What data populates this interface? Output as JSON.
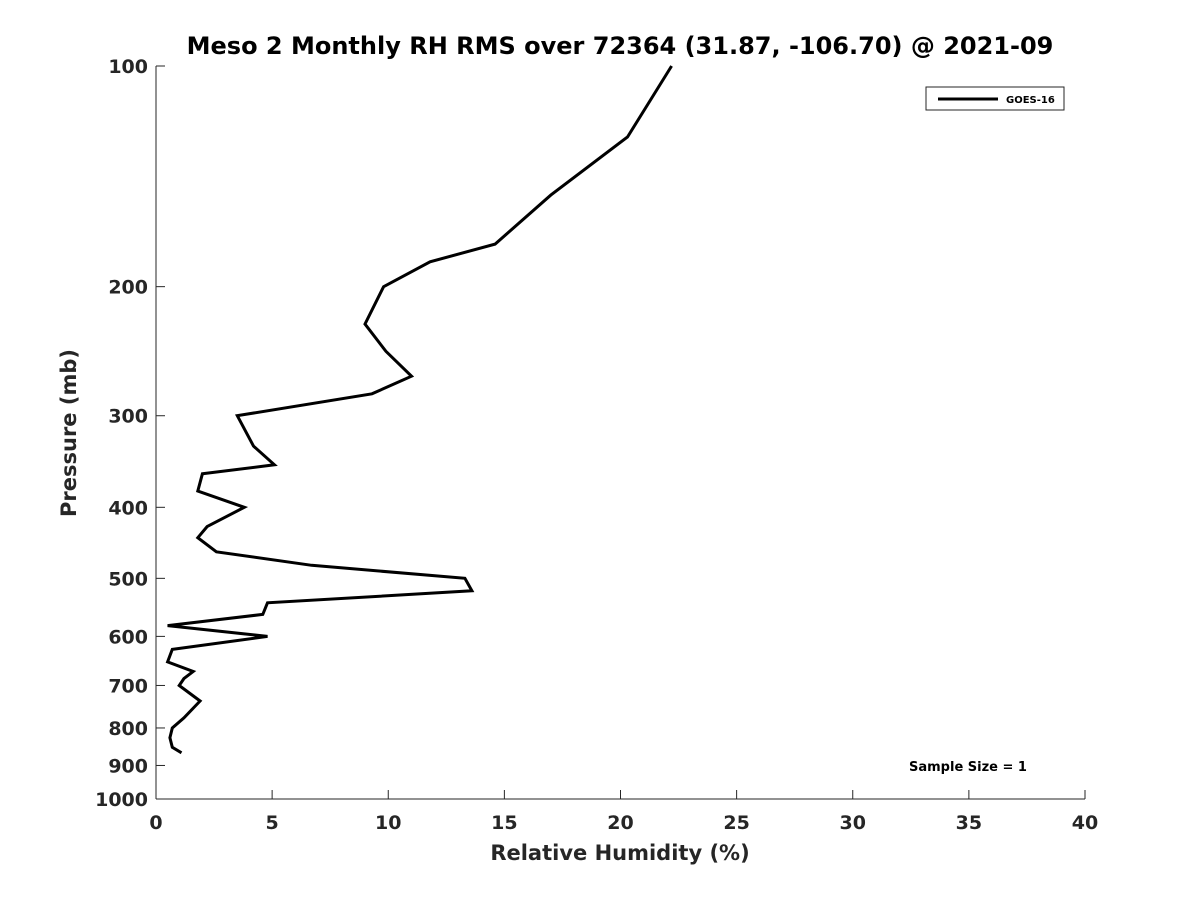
{
  "chart_data": {
    "type": "line",
    "title": "Meso 2 Monthly RH RMS over 72364 (31.87, -106.70) @ 2021-09",
    "xlabel": "Relative Humidity (%)",
    "ylabel": "Pressure (mb)",
    "xlim": [
      0,
      40
    ],
    "ylim": [
      100,
      1000
    ],
    "y_scale": "log",
    "y_reversed": true,
    "x_ticks": [
      "0",
      "5",
      "10",
      "15",
      "20",
      "25",
      "30",
      "35",
      "40"
    ],
    "y_ticks": [
      "100",
      "200",
      "300",
      "400",
      "500",
      "600",
      "700",
      "800",
      "900",
      "1000"
    ],
    "grid": false,
    "legend_position": "top-right",
    "annotation": "Sample Size = 1",
    "series": [
      {
        "name": "GOES-16",
        "color": "#000000",
        "points": [
          [
            22.2,
            100
          ],
          [
            20.3,
            125
          ],
          [
            17.0,
            150
          ],
          [
            14.6,
            175
          ],
          [
            11.8,
            185
          ],
          [
            9.8,
            200
          ],
          [
            9.0,
            225
          ],
          [
            9.9,
            245
          ],
          [
            11.0,
            265
          ],
          [
            9.3,
            280
          ],
          [
            3.5,
            300
          ],
          [
            4.2,
            330
          ],
          [
            5.1,
            350
          ],
          [
            2.0,
            360
          ],
          [
            1.8,
            380
          ],
          [
            3.8,
            400
          ],
          [
            2.2,
            425
          ],
          [
            1.8,
            440
          ],
          [
            2.6,
            460
          ],
          [
            6.7,
            480
          ],
          [
            13.3,
            500
          ],
          [
            13.6,
            520
          ],
          [
            4.8,
            540
          ],
          [
            4.6,
            560
          ],
          [
            0.5,
            580
          ],
          [
            4.8,
            600
          ],
          [
            0.7,
            625
          ],
          [
            0.5,
            650
          ],
          [
            1.6,
            670
          ],
          [
            1.2,
            685
          ],
          [
            1.0,
            700
          ],
          [
            1.9,
            735
          ],
          [
            1.2,
            775
          ],
          [
            0.7,
            800
          ],
          [
            0.6,
            825
          ],
          [
            0.7,
            850
          ],
          [
            1.1,
            865
          ]
        ]
      }
    ]
  }
}
